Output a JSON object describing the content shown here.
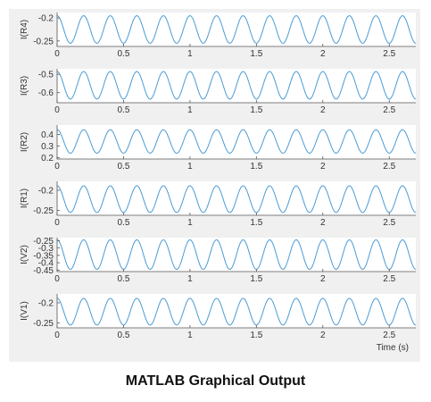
{
  "chart_data": [
    {
      "type": "line",
      "ylabel": "I(R4)",
      "yticks": [
        "-0.2",
        "-0.25"
      ],
      "ylim": [
        -0.262,
        -0.188
      ],
      "xticks": [
        "0",
        "0.5",
        "1",
        "1.5",
        "2",
        "2.5"
      ],
      "xlim": [
        0,
        2.7
      ],
      "series": [
        {
          "amplitude": 0.03,
          "offset": -0.225,
          "frequency_hz": 5,
          "phase_deg": 90
        }
      ]
    },
    {
      "type": "line",
      "ylabel": "I(R3)",
      "yticks": [
        "-0.5",
        "-0.6"
      ],
      "ylim": [
        -0.655,
        -0.47
      ],
      "xticks": [
        "0",
        "0.5",
        "1",
        "1.5",
        "2",
        "2.5"
      ],
      "xlim": [
        0,
        2.7
      ],
      "series": [
        {
          "amplitude": 0.075,
          "offset": -0.56,
          "frequency_hz": 5,
          "phase_deg": 90
        }
      ]
    },
    {
      "type": "line",
      "ylabel": "I(R2)",
      "yticks": [
        "0.4",
        "0.3",
        "0.2"
      ],
      "ylim": [
        0.19,
        0.48
      ],
      "xticks": [
        "0",
        "0.5",
        "1",
        "1.5",
        "2",
        "2.5"
      ],
      "xlim": [
        0,
        2.7
      ],
      "series": [
        {
          "amplitude": 0.1,
          "offset": 0.34,
          "frequency_hz": 5,
          "phase_deg": 90
        }
      ]
    },
    {
      "type": "line",
      "ylabel": "I(R1)",
      "yticks": [
        "-0.2",
        "-0.25"
      ],
      "ylim": [
        -0.262,
        -0.178
      ],
      "xticks": [
        "0",
        "0.5",
        "1",
        "1.5",
        "2",
        "2.5"
      ],
      "xlim": [
        0,
        2.7
      ],
      "series": [
        {
          "amplitude": 0.033,
          "offset": -0.222,
          "frequency_hz": 5,
          "phase_deg": 90
        }
      ]
    },
    {
      "type": "line",
      "ylabel": "I(V2)",
      "yticks": [
        "-0.25",
        "-0.3",
        "-0.35",
        "-0.4",
        "-0.45"
      ],
      "ylim": [
        -0.46,
        -0.23
      ],
      "xticks": [
        "0",
        "0.5",
        "1",
        "1.5",
        "2",
        "2.5"
      ],
      "xlim": [
        0,
        2.7
      ],
      "series": [
        {
          "amplitude": 0.1,
          "offset": -0.345,
          "frequency_hz": 5,
          "phase_deg": 90
        }
      ]
    },
    {
      "type": "line",
      "ylabel": "I(V1)",
      "yticks": [
        "-0.2",
        "-0.25"
      ],
      "ylim": [
        -0.262,
        -0.178
      ],
      "xticks": [
        "0",
        "0.5",
        "1",
        "1.5",
        "2",
        "2.5"
      ],
      "xlim": [
        0,
        2.7
      ],
      "xlabel": "Time (s)",
      "series": [
        {
          "amplitude": 0.033,
          "offset": -0.222,
          "frequency_hz": 5,
          "phase_deg": 90
        }
      ]
    }
  ],
  "caption": "MATLAB Graphical Output",
  "colors": {
    "line": "#4a9bd4",
    "axes_bg": "#ffffff",
    "figure_bg": "#f0f0f0",
    "grid_tick": "#333333"
  }
}
